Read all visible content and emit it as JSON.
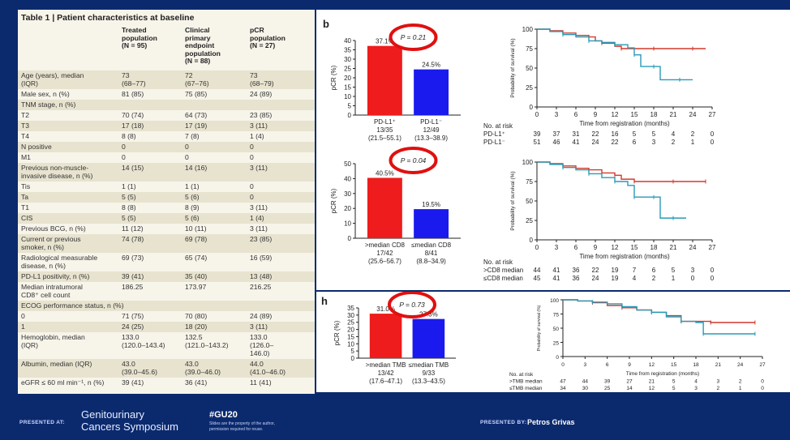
{
  "table": {
    "title": "Table 1 | Patient characteristics at baseline",
    "columns": [
      [
        "Treated",
        "population",
        "(N = 95)"
      ],
      [
        "Clinical",
        "primary",
        "endpoint",
        "population",
        "(N = 88)"
      ],
      [
        "pCR",
        "population",
        "(N = 27)"
      ]
    ],
    "rows": [
      {
        "label": [
          "Age (years), median",
          "(IQR)"
        ],
        "c1": [
          "73",
          "(68–77)"
        ],
        "c2": [
          "72",
          "(67–76)"
        ],
        "c3": [
          "73",
          "(68–79)"
        ]
      },
      {
        "label": [
          "Male sex, n (%)"
        ],
        "c1": [
          "81 (85)"
        ],
        "c2": [
          "75 (85)"
        ],
        "c3": [
          "24 (89)"
        ]
      },
      {
        "label": [
          "TNM stage, n (%)"
        ],
        "c1": [
          ""
        ],
        "c2": [
          ""
        ],
        "c3": [
          ""
        ]
      },
      {
        "label": [
          "  T2"
        ],
        "c1": [
          "70 (74)"
        ],
        "c2": [
          "64 (73)"
        ],
        "c3": [
          "23 (85)"
        ]
      },
      {
        "label": [
          "  T3"
        ],
        "c1": [
          "17 (18)"
        ],
        "c2": [
          "17 (19)"
        ],
        "c3": [
          "3 (11)"
        ]
      },
      {
        "label": [
          "  T4"
        ],
        "c1": [
          "8 (8)"
        ],
        "c2": [
          "7 (8)"
        ],
        "c3": [
          "1 (4)"
        ]
      },
      {
        "label": [
          "  N positive"
        ],
        "c1": [
          "0"
        ],
        "c2": [
          "0"
        ],
        "c3": [
          "0"
        ]
      },
      {
        "label": [
          "  M1"
        ],
        "c1": [
          "0"
        ],
        "c2": [
          "0"
        ],
        "c3": [
          "0"
        ]
      },
      {
        "label": [
          "Previous non-muscle-",
          "invasive disease, n (%)"
        ],
        "c1": [
          "14 (15)"
        ],
        "c2": [
          "14 (16)"
        ],
        "c3": [
          "3 (11)"
        ]
      },
      {
        "label": [
          "  Tis"
        ],
        "c1": [
          "1 (1)"
        ],
        "c2": [
          "1 (1)"
        ],
        "c3": [
          "0"
        ]
      },
      {
        "label": [
          "  Ta"
        ],
        "c1": [
          "5 (5)"
        ],
        "c2": [
          "5 (6)"
        ],
        "c3": [
          "0"
        ]
      },
      {
        "label": [
          "  T1"
        ],
        "c1": [
          "8 (8)"
        ],
        "c2": [
          "8 (9)"
        ],
        "c3": [
          "3 (11)"
        ]
      },
      {
        "label": [
          "  CIS"
        ],
        "c1": [
          "5 (5)"
        ],
        "c2": [
          "5 (6)"
        ],
        "c3": [
          "1 (4)"
        ]
      },
      {
        "label": [
          "Previous BCG, n (%)"
        ],
        "c1": [
          "11 (12)"
        ],
        "c2": [
          "10 (11)"
        ],
        "c3": [
          "3 (11)"
        ]
      },
      {
        "label": [
          "Current or previous",
          "smoker, n (%)"
        ],
        "c1": [
          "74 (78)"
        ],
        "c2": [
          "69 (78)"
        ],
        "c3": [
          "23 (85)"
        ]
      },
      {
        "label": [
          "Radiological measurable",
          "disease, n (%)"
        ],
        "c1": [
          "69 (73)"
        ],
        "c2": [
          "65 (74)"
        ],
        "c3": [
          "16 (59)"
        ]
      },
      {
        "label": [
          "PD-L1 positivity, n (%)"
        ],
        "c1": [
          "39 (41)"
        ],
        "c2": [
          "35 (40)"
        ],
        "c3": [
          "13 (48)"
        ]
      },
      {
        "label": [
          "Median intratumoral",
          "CD8⁺ cell count"
        ],
        "c1": [
          "186.25"
        ],
        "c2": [
          "173.97"
        ],
        "c3": [
          "216.25"
        ]
      },
      {
        "label": [
          "ECOG performance status, n (%)"
        ],
        "c1": [
          ""
        ],
        "c2": [
          ""
        ],
        "c3": [
          ""
        ]
      },
      {
        "label": [
          "  0"
        ],
        "c1": [
          "71 (75)"
        ],
        "c2": [
          "70 (80)"
        ],
        "c3": [
          "24 (89)"
        ]
      },
      {
        "label": [
          "  1"
        ],
        "c1": [
          "24 (25)"
        ],
        "c2": [
          "18 (20)"
        ],
        "c3": [
          "3 (11)"
        ]
      },
      {
        "label": [
          "Hemoglobin, median",
          "(IQR)"
        ],
        "c1": [
          "133.0",
          "(120.0–143.4)"
        ],
        "c2": [
          "132.5",
          "(121.0–143.2)"
        ],
        "c3": [
          "133.0",
          "(126.0–",
          "146.0)"
        ]
      },
      {
        "label": [
          "Albumin, median (IQR)"
        ],
        "c1": [
          "43.0",
          "(39.0–45.6)"
        ],
        "c2": [
          "43.0",
          "(39.0–46.0)"
        ],
        "c3": [
          "44.0",
          "(41.0–46.0)"
        ]
      },
      {
        "label": [
          "eGFR ≤ 60 ml min⁻¹, n (%)"
        ],
        "c1": [
          "39 (41)"
        ],
        "c2": [
          "36 (41)"
        ],
        "c3": [
          "11 (41)"
        ]
      }
    ]
  },
  "chart_data": [
    {
      "type": "bar",
      "panel_letter": "b",
      "p_value": "P = 0.21",
      "ylabel": "pCR (%)",
      "ylim": [
        0,
        40
      ],
      "yticks": [
        0,
        5,
        10,
        15,
        20,
        25,
        30,
        35,
        40
      ],
      "categories": [
        [
          "PD-L1⁺",
          "13/35",
          "(21.5–55.1)"
        ],
        [
          "PD-L1⁻",
          "12/49",
          "(13.3–38.9)"
        ]
      ],
      "values": [
        37.1,
        24.5
      ],
      "value_labels": [
        "37.1%",
        "24.5%"
      ],
      "colors": [
        "#ee1c1c",
        "#1a1aee"
      ]
    },
    {
      "type": "bar",
      "panel_letter": "",
      "p_value": "P = 0.04",
      "ylabel": "pCR (%)",
      "ylim": [
        0,
        50
      ],
      "yticks": [
        0,
        10,
        20,
        30,
        40,
        50
      ],
      "categories": [
        [
          ">median CD8",
          "17/42",
          "(25.6–56.7)"
        ],
        [
          "≤median CD8",
          "8/41",
          "(8.8–34.9)"
        ]
      ],
      "values": [
        40.5,
        19.5
      ],
      "value_labels": [
        "40.5%",
        "19.5%"
      ],
      "colors": [
        "#ee1c1c",
        "#1a1aee"
      ]
    },
    {
      "type": "bar",
      "panel_letter": "h",
      "p_value": "P = 0.73",
      "ylabel": "pCR (%)",
      "ylim": [
        0,
        35
      ],
      "yticks": [
        0,
        5,
        10,
        15,
        20,
        25,
        30,
        35
      ],
      "categories": [
        [
          ">median TMB",
          "13/42",
          "(17.6–47.1)"
        ],
        [
          "≤median TMB",
          "9/33",
          "(13.3–43.5)"
        ]
      ],
      "values": [
        31.0,
        27.3
      ],
      "value_labels": [
        "31.0%",
        "27.3%"
      ],
      "colors": [
        "#ee1c1c",
        "#1a1aee"
      ]
    },
    {
      "type": "line",
      "ylabel": "Probability of survival (%)",
      "xlabel": "Time from registration (months)",
      "xlim": [
        0,
        27
      ],
      "ylim": [
        0,
        100
      ],
      "xticks": [
        0,
        3,
        6,
        9,
        12,
        15,
        18,
        21,
        24,
        27
      ],
      "yticks": [
        0,
        25,
        50,
        75,
        100
      ],
      "series": [
        {
          "color": "#d43a2a",
          "x": [
            0,
            2,
            4,
            6,
            8,
            9,
            10,
            12,
            13,
            15,
            18,
            21,
            24,
            26
          ],
          "y": [
            100,
            98,
            95,
            92,
            90,
            85,
            82,
            78,
            75,
            75,
            75,
            75,
            75,
            75
          ]
        },
        {
          "color": "#2a9ab8",
          "x": [
            0,
            2,
            4,
            6,
            8,
            10,
            12,
            14,
            15,
            16,
            18,
            19,
            22,
            24
          ],
          "y": [
            100,
            97,
            93,
            90,
            85,
            83,
            80,
            76,
            67,
            52,
            52,
            35,
            35,
            35
          ]
        }
      ],
      "risk_table": {
        "title": "No. at risk",
        "rows": [
          {
            "label": "PD-L1⁺",
            "values": [
              "39",
              "37",
              "31",
              "22",
              "16",
              "5",
              "5",
              "4",
              "2",
              "0"
            ]
          },
          {
            "label": "PD-L1⁻",
            "values": [
              "51",
              "46",
              "41",
              "24",
              "22",
              "6",
              "3",
              "2",
              "1",
              "0"
            ]
          }
        ]
      }
    },
    {
      "type": "line",
      "ylabel": "Probability of survival (%)",
      "xlabel": "Time from registration (months)",
      "xlim": [
        0,
        27
      ],
      "ylim": [
        0,
        100
      ],
      "xticks": [
        0,
        3,
        6,
        9,
        12,
        15,
        18,
        21,
        24,
        27
      ],
      "yticks": [
        0,
        25,
        50,
        75,
        100
      ],
      "series": [
        {
          "color": "#d43a2a",
          "x": [
            0,
            2,
            4,
            6,
            8,
            10,
            12,
            13,
            15,
            18,
            21,
            24,
            26
          ],
          "y": [
            100,
            98,
            95,
            92,
            90,
            86,
            83,
            78,
            75,
            75,
            75,
            75,
            75
          ]
        },
        {
          "color": "#2a9ab8",
          "x": [
            0,
            2,
            4,
            6,
            8,
            10,
            12,
            14,
            15,
            16,
            18,
            19,
            21,
            23
          ],
          "y": [
            100,
            97,
            93,
            90,
            85,
            80,
            75,
            70,
            55,
            55,
            55,
            28,
            28,
            28
          ]
        }
      ],
      "risk_table": {
        "title": "No. at risk",
        "rows": [
          {
            "label": ">CD8 median",
            "values": [
              "44",
              "41",
              "36",
              "22",
              "19",
              "7",
              "6",
              "5",
              "3",
              "0"
            ]
          },
          {
            "label": "≤CD8 median",
            "values": [
              "45",
              "41",
              "36",
              "24",
              "19",
              "4",
              "2",
              "1",
              "0",
              "0"
            ]
          }
        ]
      }
    },
    {
      "type": "line",
      "ylabel": "Probability of survival (%)",
      "xlabel": "Time from registration (months)",
      "xlim": [
        0,
        27
      ],
      "ylim": [
        0,
        100
      ],
      "xticks": [
        0,
        3,
        6,
        9,
        12,
        15,
        18,
        21,
        24,
        27
      ],
      "yticks": [
        0,
        25,
        50,
        75,
        100
      ],
      "series": [
        {
          "color": "#d43a2a",
          "x": [
            0,
            2,
            4,
            6,
            8,
            10,
            12,
            14,
            16,
            18,
            20,
            24,
            26
          ],
          "y": [
            100,
            98,
            95,
            90,
            86,
            82,
            78,
            72,
            62,
            62,
            60,
            60,
            60
          ]
        },
        {
          "color": "#2a9ab8",
          "x": [
            0,
            2,
            4,
            6,
            8,
            10,
            12,
            14,
            16,
            18,
            19,
            22,
            26
          ],
          "y": [
            100,
            98,
            96,
            93,
            88,
            82,
            78,
            70,
            62,
            60,
            40,
            40,
            40
          ]
        }
      ],
      "risk_table": {
        "title": "No. at risk",
        "rows": [
          {
            "label": ">TMB median",
            "values": [
              "47",
              "44",
              "39",
              "27",
              "21",
              "5",
              "4",
              "3",
              "2",
              "0"
            ]
          },
          {
            "label": "≤TMB median",
            "values": [
              "34",
              "30",
              "25",
              "14",
              "12",
              "5",
              "3",
              "2",
              "1",
              "0"
            ]
          }
        ]
      }
    }
  ],
  "footer": {
    "presented_at": "PRESENTED AT:",
    "meeting_line1": "Genitourinary",
    "meeting_line2": "Cancers Symposium",
    "hashtag": "#GU20",
    "note_line1": "Slides are the property of the author,",
    "note_line2": "permission required for reuse.",
    "presented_by": "PRESENTED BY:",
    "presenter": "Petros Grivas"
  }
}
